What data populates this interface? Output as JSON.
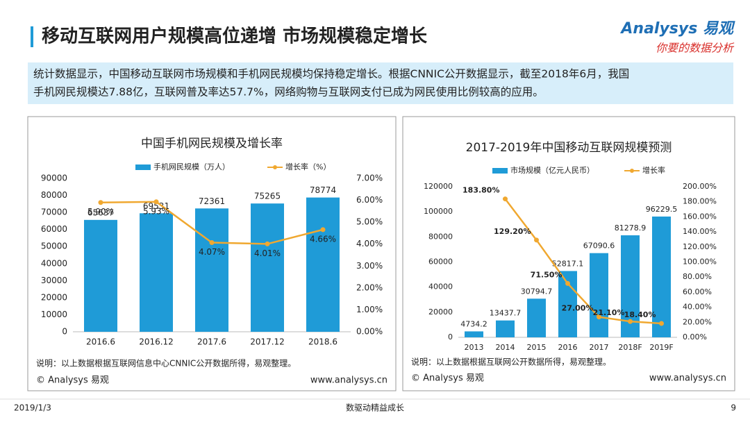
{
  "header": {
    "title": "移动互联网用户规模高位递增 市场规模稳定增长",
    "logo": "Analysys 易观",
    "tagline": "你要的数据分析",
    "summary_lines": [
      "统计数据显示，中国移动互联网市场规模和手机网民规模均保持稳定增长。根据CNNIC公开数据显示，截至2018年6月，我国",
      "手机网民规模达7.88亿，互联网普及率达57.7%，网络购物与互联网支付已成为网民使用比例较高的应用。"
    ]
  },
  "footer": {
    "date": "2019/1/3",
    "slogan": "数驱动精益成长",
    "page": "9"
  },
  "chart_data": [
    {
      "type": "combo",
      "title": "中国手机网民规模及增长率",
      "categories": [
        "2016.6",
        "2016.12",
        "2017.6",
        "2017.12",
        "2018.6"
      ],
      "series": [
        {
          "name": "手机网民规模（万人）",
          "type": "bar",
          "color": "#1f9bd7",
          "values": [
            65637,
            69531,
            72361,
            75265,
            78774
          ]
        },
        {
          "name": "增长率（%）",
          "type": "line",
          "axis": "y2",
          "color": "#f0a830",
          "values": [
            5.9,
            5.93,
            4.07,
            4.01,
            4.66
          ],
          "value_labels": [
            "5.90%",
            "5.93%",
            "4.07%",
            "4.01%",
            "4.66%"
          ]
        }
      ],
      "ylim": [
        0,
        90000
      ],
      "yticks": [
        0,
        10000,
        20000,
        30000,
        40000,
        50000,
        60000,
        70000,
        80000,
        90000
      ],
      "y2lim": [
        0,
        7
      ],
      "y2ticks": [
        {
          "value": 0,
          "label": "0.00%"
        },
        {
          "value": 1,
          "label": "1.00%"
        },
        {
          "value": 2,
          "label": "2.00%"
        },
        {
          "value": 3,
          "label": "3.00%"
        },
        {
          "value": 4,
          "label": "4.00%"
        },
        {
          "value": 5,
          "label": "5.00%"
        },
        {
          "value": 6,
          "label": "6.00%"
        },
        {
          "value": 7,
          "label": "7.00%"
        }
      ],
      "note": "说明：以上数据根据互联网信息中心CNNIC公开数据所得，易观整理。",
      "source_left": "© Analysys 易观",
      "source_right": "www.analysys.cn"
    },
    {
      "type": "combo",
      "title": "2017-2019年中国移动互联网规模预测",
      "categories": [
        "2013",
        "2014",
        "2015",
        "2016",
        "2017",
        "2018F",
        "2019F"
      ],
      "series": [
        {
          "name": "市场规模（亿元人民币）",
          "type": "bar",
          "color": "#1f9bd7",
          "values": [
            4734.2,
            13437.7,
            30794.7,
            52817.1,
            67090.6,
            81278.9,
            96229.5
          ]
        },
        {
          "name": "增长率",
          "type": "line",
          "axis": "y2",
          "color": "#f0a830",
          "values": [
            null,
            183.8,
            129.2,
            71.5,
            27.0,
            21.1,
            18.4
          ],
          "value_labels": [
            null,
            "183.80%",
            "129.20%",
            "71.50%",
            "27.00%",
            "21.10%",
            "18.40%"
          ]
        }
      ],
      "ylim": [
        0,
        120000
      ],
      "yticks": [
        0,
        20000,
        40000,
        60000,
        80000,
        100000,
        120000
      ],
      "y2lim": [
        0,
        200
      ],
      "y2ticks": [
        {
          "value": 0,
          "label": "0.00%"
        },
        {
          "value": 20,
          "label": "20.00%"
        },
        {
          "value": 40,
          "label": "40.00%"
        },
        {
          "value": 60,
          "label": "60.00%"
        },
        {
          "value": 80,
          "label": "80.00%"
        },
        {
          "value": 100,
          "label": "100.00%"
        },
        {
          "value": 120,
          "label": "120.00%"
        },
        {
          "value": 140,
          "label": "140.00%"
        },
        {
          "value": 160,
          "label": "160.00%"
        },
        {
          "value": 180,
          "label": "180.00%"
        },
        {
          "value": 200,
          "label": "200.00%"
        }
      ],
      "note": "说明：以上数据根据互联网公开数据所得，易观整理。",
      "source_left": "© Analysys 易观",
      "source_right": "www.analysys.cn"
    }
  ]
}
